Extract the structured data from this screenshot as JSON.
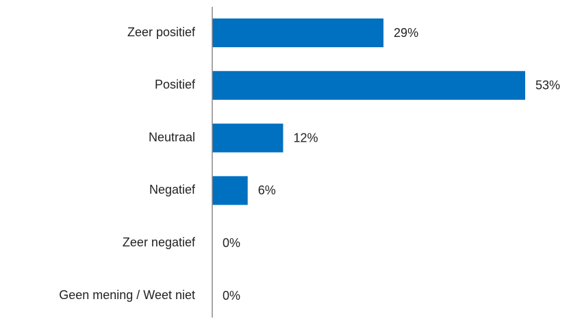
{
  "chart_data": {
    "type": "bar",
    "orientation": "horizontal",
    "categories": [
      "Zeer positief",
      "Positief",
      "Neutraal",
      "Negatief",
      "Zeer negatief",
      "Geen mening / Weet niet"
    ],
    "values": [
      29,
      53,
      12,
      6,
      0,
      0
    ],
    "value_labels": [
      "29%",
      "53%",
      "12%",
      "6%",
      "0%",
      "0%"
    ],
    "color": "#0070c0"
  }
}
